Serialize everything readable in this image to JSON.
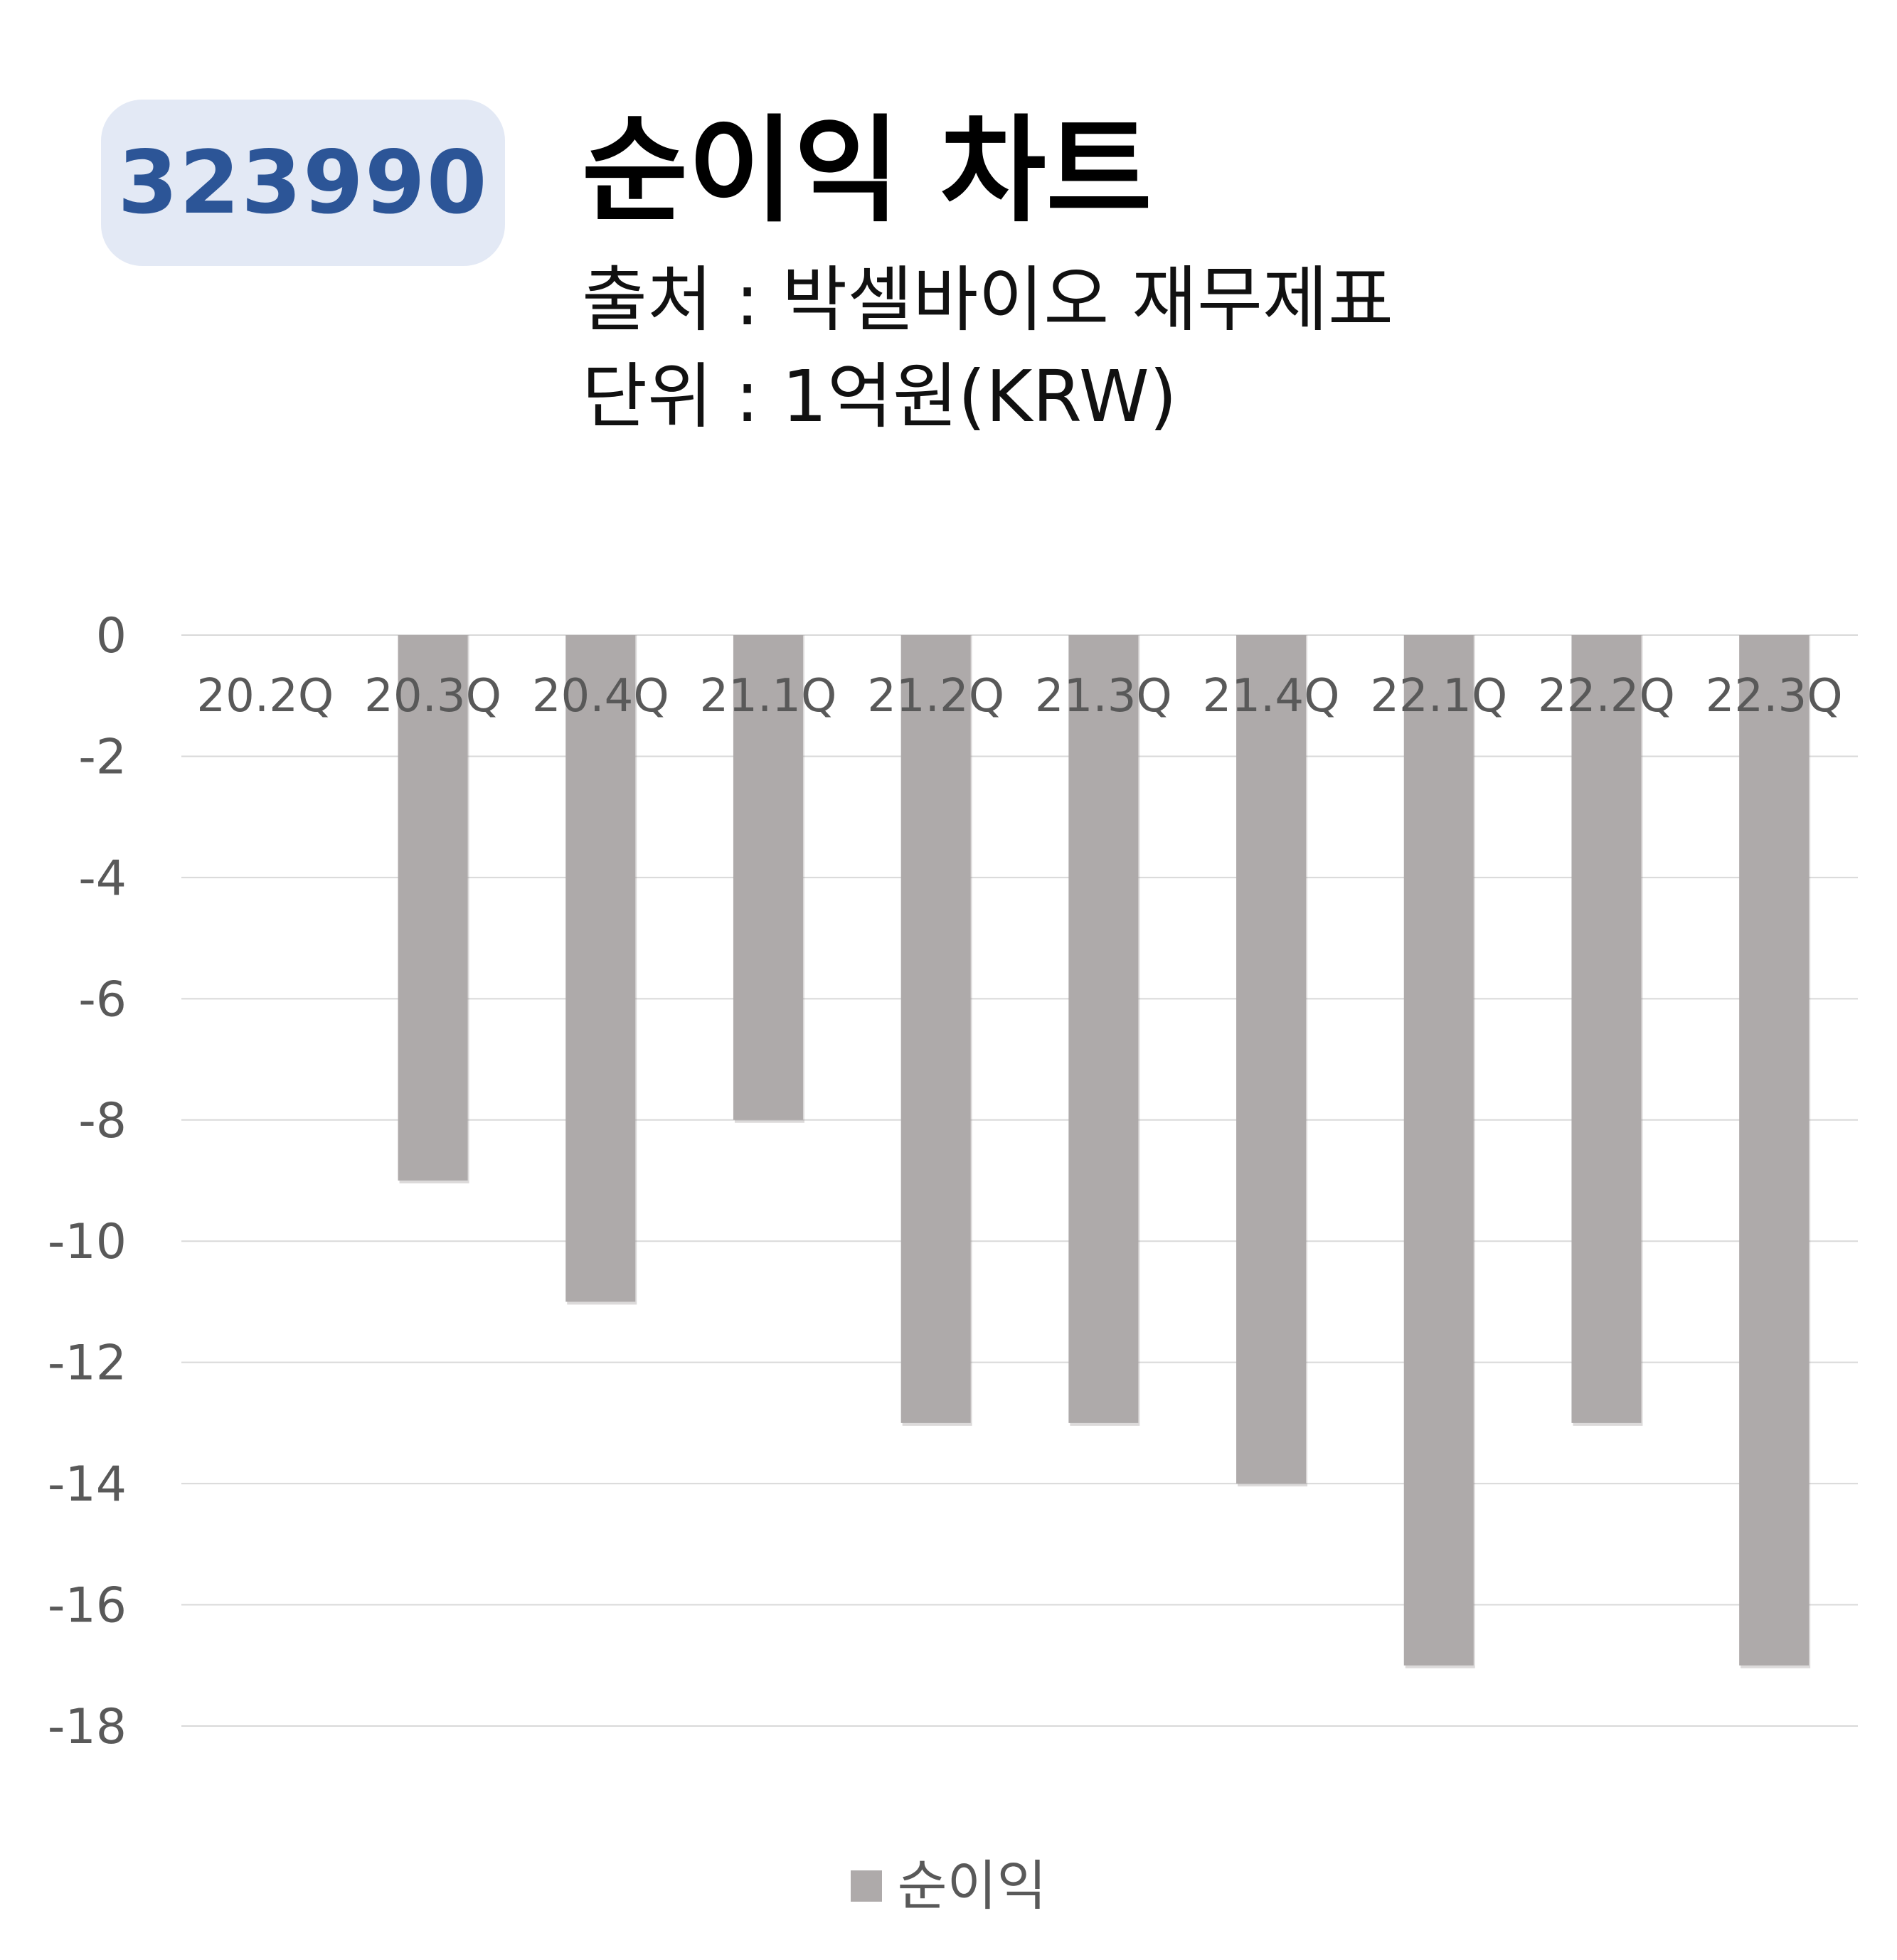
{
  "header": {
    "code": "323990",
    "title": "순이익 차트",
    "source": "출처 : 박셀바이오 재무제표",
    "unit": "단위 : 1억원(KRW)"
  },
  "chart_data": {
    "type": "bar",
    "categories": [
      "20.2Q",
      "20.3Q",
      "20.4Q",
      "21.1Q",
      "21.2Q",
      "21.3Q",
      "21.4Q",
      "22.1Q",
      "22.2Q",
      "22.3Q"
    ],
    "series": [
      {
        "name": "순이익",
        "values": [
          0,
          -9,
          -11,
          -8,
          -13,
          -13,
          -14,
          -17,
          -13,
          -17
        ],
        "color": "#aeaaaa"
      }
    ],
    "ylim": [
      -18,
      0
    ],
    "yticks": [
      0,
      -2,
      -4,
      -6,
      -8,
      -10,
      -12,
      -14,
      -16,
      -18
    ],
    "grid": true,
    "legend_position": "bottom",
    "gridline_color": "#d9d9d9",
    "tick_label_color": "#595959"
  }
}
